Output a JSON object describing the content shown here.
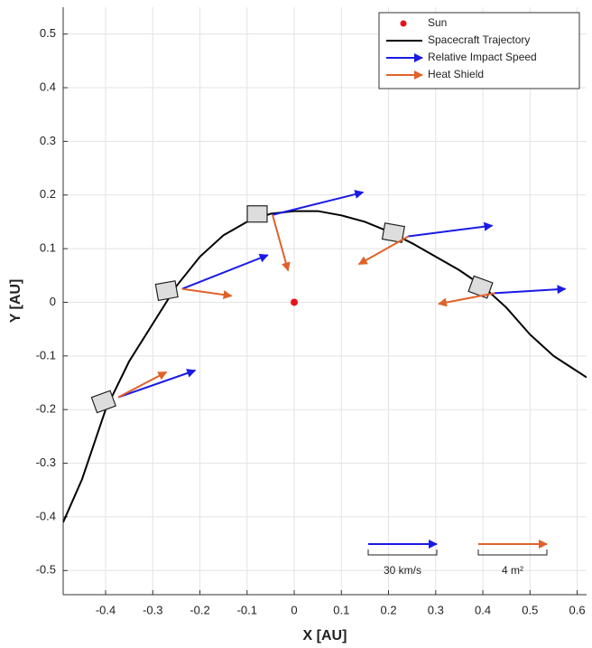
{
  "chart_data": {
    "type": "line",
    "x_label": "X [AU]",
    "y_label": "Y [AU]",
    "xlim": [
      -0.49,
      0.62
    ],
    "ylim": [
      -0.545,
      0.55
    ],
    "xticks": [
      -0.4,
      -0.3,
      -0.2,
      -0.1,
      0,
      0.1,
      0.2,
      0.3,
      0.4,
      0.5,
      0.6
    ],
    "yticks": [
      -0.5,
      -0.4,
      -0.3,
      -0.2,
      -0.1,
      0,
      0.1,
      0.2,
      0.3,
      0.4,
      0.5
    ],
    "grid": true,
    "legend": "upper right",
    "series": [
      {
        "name": "Sun",
        "color": "#e8111a",
        "kind": "point",
        "x": [
          0
        ],
        "y": [
          0
        ]
      },
      {
        "name": "Spacecraft Trajectory",
        "color": "#000000",
        "kind": "line",
        "x": [
          -0.49,
          -0.45,
          -0.4,
          -0.35,
          -0.3,
          -0.25,
          -0.2,
          -0.15,
          -0.1,
          -0.05,
          0,
          0.05,
          0.1,
          0.15,
          0.2,
          0.25,
          0.3,
          0.35,
          0.4,
          0.45,
          0.5,
          0.55,
          0.62
        ],
        "y": [
          -0.41,
          -0.33,
          -0.2,
          -0.11,
          -0.04,
          0.03,
          0.085,
          0.125,
          0.15,
          0.165,
          0.17,
          0.17,
          0.162,
          0.15,
          0.132,
          0.11,
          0.085,
          0.06,
          0.03,
          -0.01,
          -0.06,
          -0.1,
          -0.14
        ]
      },
      {
        "name": "Relative Impact Speed",
        "color": "#1a1ae6",
        "kind": "arrow",
        "x0": [
          -0.373,
          -0.238,
          -0.046,
          0.242,
          0.425
        ],
        "y0": [
          -0.177,
          0.025,
          0.163,
          0.123,
          0.017
        ],
        "x1": [
          -0.21,
          -0.056,
          0.146,
          0.42,
          0.575
        ],
        "y1": [
          -0.127,
          0.088,
          0.205,
          0.143,
          0.025
        ]
      },
      {
        "name": "Heat Shield",
        "color": "#e0622a",
        "kind": "arrow",
        "x0": [
          -0.373,
          -0.238,
          -0.046,
          0.242,
          0.425
        ],
        "y0": [
          -0.177,
          0.025,
          0.163,
          0.123,
          0.017
        ],
        "x1": [
          -0.271,
          -0.133,
          -0.013,
          0.137,
          0.306
        ],
        "y1": [
          -0.13,
          0.012,
          0.059,
          0.071,
          -0.003
        ]
      }
    ],
    "scale_bars": [
      {
        "label": "30 km/s",
        "color": "#1a1ae6"
      },
      {
        "label": "4 m²",
        "color": "#e0622a"
      }
    ]
  }
}
